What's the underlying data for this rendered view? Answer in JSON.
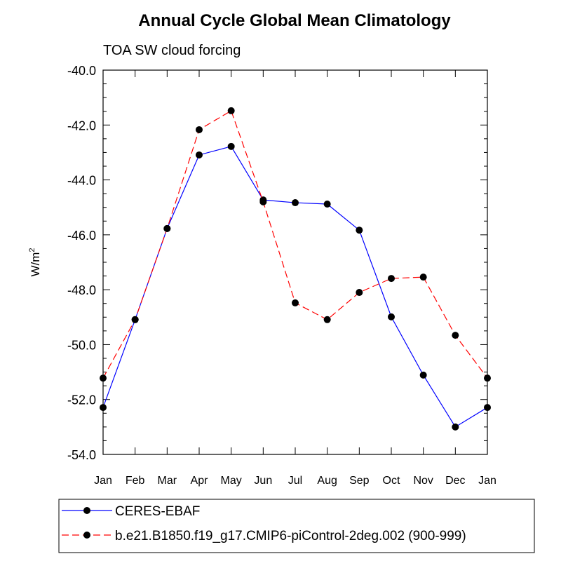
{
  "chart_data": {
    "type": "line",
    "title": "Annual Cycle Global Mean Climatology",
    "subtitle": "TOA SW cloud forcing",
    "ylabel": "W/m",
    "ylabel_sup": "2",
    "xlabel": "",
    "categories": [
      "Jan",
      "Feb",
      "Mar",
      "Apr",
      "May",
      "Jun",
      "Jul",
      "Aug",
      "Sep",
      "Oct",
      "Nov",
      "Dec",
      "Jan"
    ],
    "ylim": [
      -54,
      -40
    ],
    "yticks": [
      -40,
      -42,
      -44,
      -46,
      -48,
      -50,
      -52,
      -54
    ],
    "ytick_labels": [
      "-40.0",
      "-42.0",
      "-44.0",
      "-46.0",
      "-48.0",
      "-50.0",
      "-52.0",
      "-54.0"
    ],
    "minor_step": 0.5,
    "legend_position": "bottom",
    "series": [
      {
        "name": "CERES-EBAF",
        "color": "#0000ff",
        "dash": "solid",
        "values": [
          -52.29,
          -49.09,
          -45.77,
          -43.09,
          -42.78,
          -44.73,
          -44.83,
          -44.88,
          -45.83,
          -48.99,
          -51.11,
          -53.0,
          -52.29
        ]
      },
      {
        "name": "b.e21.B1850.f19_g17.CMIP6-piControl-2deg.002 (900-999)",
        "color": "#ff0000",
        "dash": "dashed",
        "values": [
          -51.22,
          -49.09,
          -45.77,
          -42.17,
          -41.48,
          -44.8,
          -48.48,
          -49.09,
          -48.1,
          -47.59,
          -47.54,
          -49.66,
          -51.22
        ]
      }
    ]
  }
}
